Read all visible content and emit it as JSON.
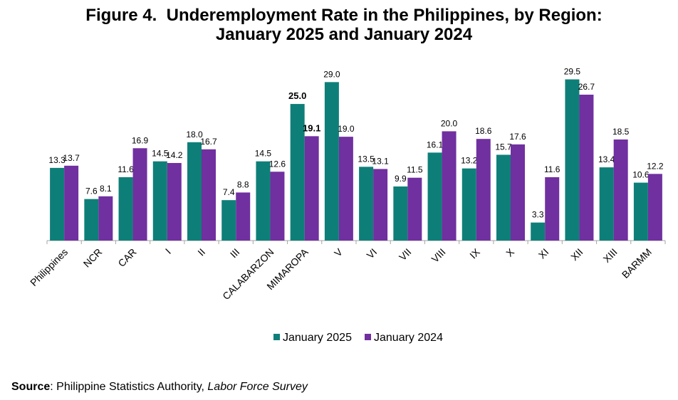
{
  "chart_data": {
    "type": "bar",
    "title_line1": "Figure 4.  Underemployment Rate in the Philippines, by Region:",
    "title_line2": "January 2025 and January 2024",
    "categories": [
      "Philippines",
      "NCR",
      "CAR",
      "I",
      "II",
      "III",
      "CALABARZON",
      "MIMAROPA",
      "V",
      "VI",
      "VII",
      "VIII",
      "IX",
      "X",
      "XI",
      "XII",
      "XIII",
      "BARMM"
    ],
    "series": [
      {
        "name": "January 2025",
        "color": "#0E7F78",
        "values": [
          13.3,
          7.6,
          11.6,
          14.5,
          18.0,
          7.4,
          14.5,
          25.0,
          29.0,
          13.5,
          9.9,
          16.1,
          13.2,
          15.7,
          3.3,
          29.5,
          13.4,
          10.6
        ],
        "labels": [
          "13.3",
          "7.6",
          "11.6",
          "14.5",
          "18.0",
          "7.4",
          "14.5",
          "25.0",
          "29.0",
          "13.5",
          "9.9",
          "16.1",
          "13.2",
          "15.7",
          "3.3",
          "29.5",
          "13.4",
          "10.6"
        ]
      },
      {
        "name": "January 2024",
        "color": "#7030A0",
        "values": [
          13.7,
          8.1,
          16.9,
          14.2,
          16.7,
          8.8,
          12.6,
          19.1,
          19.0,
          13.1,
          11.5,
          20.0,
          18.6,
          17.6,
          11.6,
          26.7,
          18.5,
          12.2
        ],
        "labels": [
          "13.7",
          "8.1",
          "16.9",
          "14.2",
          "16.7",
          "8.8",
          "12.6",
          "19.1",
          "19.0",
          "13.1",
          "11.5",
          "20.0",
          "18.6",
          "17.6",
          "11.6",
          "26.7",
          "18.5",
          "12.2"
        ]
      }
    ],
    "bold_labels": [
      [
        7,
        0
      ],
      [
        7,
        1
      ]
    ],
    "ylim": [
      0,
      31
    ],
    "grid": false,
    "legend_position": "bottom-center"
  },
  "source": {
    "label": "Source",
    "text": ": Philippine Statistics Authority, ",
    "italic": "Labor Force Survey"
  }
}
